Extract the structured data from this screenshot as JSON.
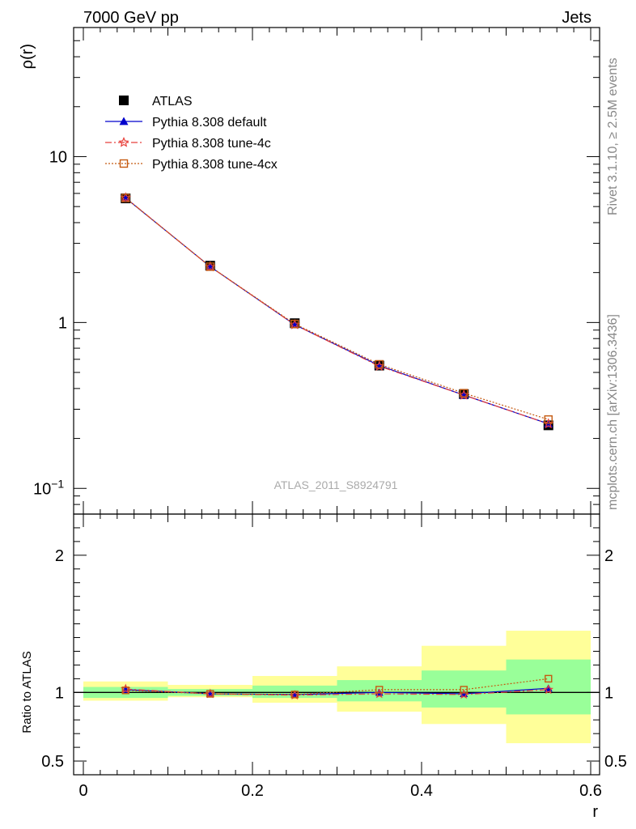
{
  "header": {
    "left": "7000 GeV pp",
    "right": "Jets"
  },
  "side_labels": {
    "top": "Rivet 3.1.10, ≥ 2.5M events",
    "bottom": "mcplots.cern.ch [arXiv:1306.3436]"
  },
  "watermark": "ATLAS_2011_S8924791",
  "colors": {
    "atlas": "#000000",
    "default": "#0000cc",
    "tune4c": "#e8413c",
    "tune4cx": "#c55a11",
    "band_inner": "#99ff99",
    "band_outer": "#ffff99"
  },
  "chart_data": [
    {
      "type": "line",
      "panel": "main",
      "ylabel": "ρ(r)",
      "yscale": "log",
      "xlim": [
        0,
        0.6
      ],
      "ylim": [
        0.07,
        60
      ],
      "y_tick_labels": [
        {
          "value": 10,
          "label": "10"
        },
        {
          "value": 1,
          "label": "1"
        },
        {
          "value": 0.1,
          "label": "10",
          "sup": "−1"
        }
      ],
      "legend_position": "top-left",
      "x": [
        0.05,
        0.15,
        0.25,
        0.35,
        0.45,
        0.55
      ],
      "series": [
        {
          "name": "ATLAS",
          "key": "atlas",
          "marker": "square",
          "values": [
            5.6,
            2.2,
            0.99,
            0.55,
            0.37,
            0.24
          ]
        },
        {
          "name": "Pythia 8.308 default",
          "key": "default",
          "marker": "triangle",
          "line": "solid",
          "values": [
            5.62,
            2.17,
            0.97,
            0.55,
            0.365,
            0.245
          ]
        },
        {
          "name": "Pythia 8.308 tune-4c",
          "key": "tune4c",
          "marker": "star",
          "line": "dashdot",
          "values": [
            5.65,
            2.17,
            0.97,
            0.545,
            0.365,
            0.245
          ]
        },
        {
          "name": "Pythia 8.308 tune-4cx",
          "key": "tune4cx",
          "marker": "open-square",
          "line": "dotted",
          "values": [
            5.63,
            2.17,
            0.98,
            0.56,
            0.375,
            0.26
          ]
        }
      ]
    },
    {
      "type": "line",
      "panel": "ratio",
      "xlabel": "r",
      "ylabel": "Ratio to ATLAS",
      "xlim": [
        0,
        0.6
      ],
      "ylim": [
        0.4,
        2.3
      ],
      "x_tick_labels": [
        {
          "value": 0,
          "label": "0"
        },
        {
          "value": 0.2,
          "label": "0.2"
        },
        {
          "value": 0.4,
          "label": "0.4"
        },
        {
          "value": 0.6,
          "label": "0.6"
        }
      ],
      "y_tick_labels": [
        {
          "value": 0.5,
          "label": "0.5"
        },
        {
          "value": 1,
          "label": "1"
        },
        {
          "value": 2,
          "label": "2"
        }
      ],
      "bins": [
        [
          0.0,
          0.1
        ],
        [
          0.1,
          0.2
        ],
        [
          0.2,
          0.3
        ],
        [
          0.3,
          0.4
        ],
        [
          0.4,
          0.5
        ],
        [
          0.5,
          0.6
        ]
      ],
      "band_inner": [
        [
          0.96,
          1.04
        ],
        [
          0.975,
          1.025
        ],
        [
          0.96,
          1.05
        ],
        [
          0.935,
          1.09
        ],
        [
          0.89,
          1.16
        ],
        [
          0.84,
          1.24
        ]
      ],
      "band_outer": [
        [
          0.94,
          1.08
        ],
        [
          0.965,
          1.055
        ],
        [
          0.925,
          1.12
        ],
        [
          0.86,
          1.19
        ],
        [
          0.77,
          1.34
        ],
        [
          0.63,
          1.45
        ]
      ],
      "x": [
        0.05,
        0.15,
        0.25,
        0.35,
        0.45,
        0.55
      ],
      "series": [
        {
          "key": "default",
          "marker": "triangle",
          "line": "solid",
          "values": [
            1.02,
            0.99,
            0.985,
            1.0,
            0.99,
            1.03
          ]
        },
        {
          "key": "tune4c",
          "marker": "star",
          "line": "dashdot",
          "values": [
            1.025,
            0.99,
            0.98,
            0.99,
            0.985,
            1.02
          ]
        },
        {
          "key": "tune4cx",
          "marker": "open-square",
          "line": "dotted",
          "values": [
            1.015,
            0.99,
            0.985,
            1.02,
            1.02,
            1.1
          ]
        }
      ]
    }
  ]
}
